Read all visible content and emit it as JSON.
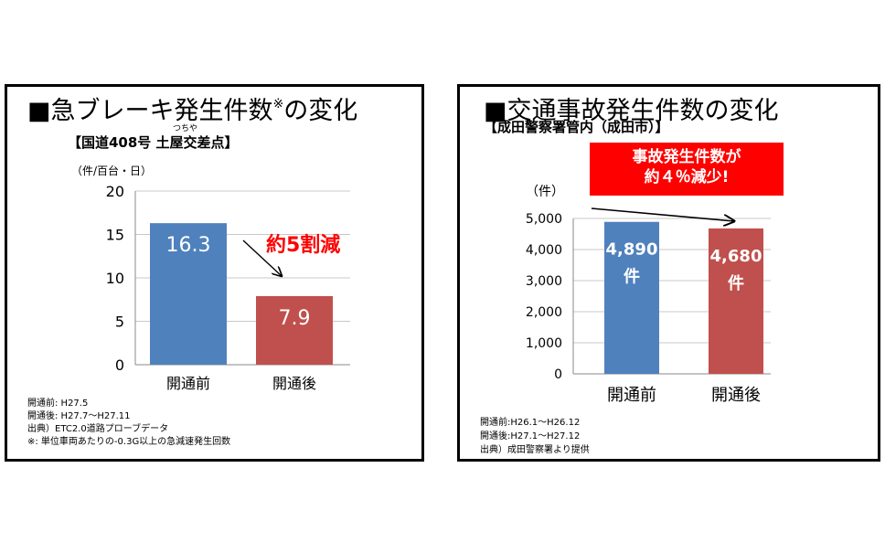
{
  "left": {
    "title": "■急ブレーキ発生件数",
    "title_mark": "※",
    "title_suffix": "の変化",
    "subtitle": "【国道408号  土屋交差点】",
    "ruby": "つちや",
    "unit": "（件/百台・日）",
    "annotation": "約5割減",
    "notes": [
      "開通前:  H27.5",
      "開通後:  H27.7～H27.11",
      "出典）ETC2.0道路プローブデータ",
      "※:  単位車両あたりの-0.3G以上の急減速発生回数"
    ],
    "colors": {
      "bar1": "#4f81bd",
      "bar2": "#c0504d",
      "annotation": "#ff0000"
    }
  },
  "right": {
    "title": "■交通事故発生件数の変化",
    "subtitle": "【成田警察署管内（成田市）】",
    "unit": "（件）",
    "callout": [
      "事故発生件数が",
      "約４％減少!"
    ],
    "notes": [
      "開通前:H26.1～H26.12",
      "開通後:H27.1～H27.12",
      "出典）成田警察署より提供"
    ],
    "colors": {
      "bar1": "#4f81bd",
      "bar2": "#c0504d",
      "callout": "#ff0000"
    }
  },
  "chart_data": [
    {
      "type": "bar",
      "categories": [
        "開通前",
        "開通後"
      ],
      "values": [
        16.3,
        7.9
      ],
      "value_labels": [
        "16.3",
        "7.9"
      ],
      "yticks": [
        "0",
        "5",
        "10",
        "15",
        "20"
      ],
      "ylim": [
        0,
        20
      ],
      "title": "■急ブレーキ発生件数※の変化",
      "ylabel": "（件/百台・日）",
      "grid": true
    },
    {
      "type": "bar",
      "categories": [
        "開通前",
        "開通後"
      ],
      "values": [
        4890,
        4680
      ],
      "value_labels": [
        [
          "4,890",
          "件"
        ],
        [
          "4,680",
          "件"
        ]
      ],
      "yticks": [
        "0",
        "1,000",
        "2,000",
        "3,000",
        "4,000",
        "5,000"
      ],
      "ylim": [
        0,
        5000
      ],
      "title": "■交通事故発生件数の変化",
      "ylabel": "（件）",
      "grid": true
    }
  ]
}
